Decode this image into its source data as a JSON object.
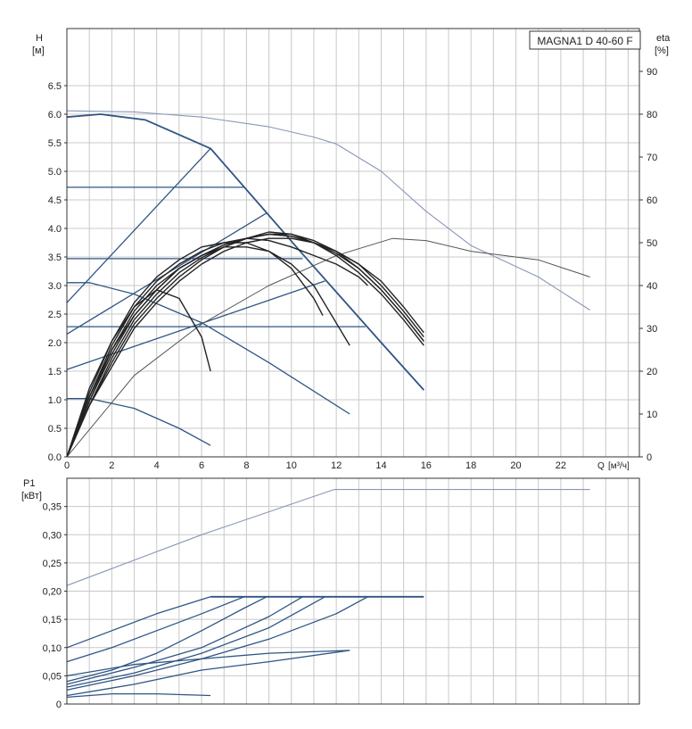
{
  "chart_data": [
    {
      "type": "line",
      "title": "MAGNA1 D 40-60 F",
      "ylabel": "H",
      "yunit": "[м]",
      "y2label": "eta",
      "y2unit": "[%]",
      "xlabel": "Q",
      "xunit": "[м³/ч]",
      "xlim": [
        0,
        25.5
      ],
      "ylim": [
        0,
        7.5
      ],
      "y2lim": [
        0,
        100
      ],
      "grid": true,
      "x_ticks": [
        "0",
        "2",
        "4",
        "6",
        "8",
        "10",
        "12",
        "14",
        "16",
        "18",
        "20",
        "22"
      ],
      "y_ticks": [
        "0.0",
        "0.5",
        "1.0",
        "1.5",
        "2.0",
        "2.5",
        "3.0",
        "3.5",
        "4.0",
        "4.5",
        "5.0",
        "5.5",
        "6.0",
        "6.5"
      ],
      "y2_ticks": [
        "0",
        "10",
        "20",
        "30",
        "40",
        "50",
        "60",
        "70",
        "80",
        "90"
      ],
      "series": [
        {
          "name": "max-curve-single",
          "axis": "H",
          "color": "#8a97b8",
          "width": 1.1,
          "x": [
            0,
            3,
            6,
            9,
            11,
            12,
            14,
            16,
            18,
            21,
            23.3
          ],
          "y": [
            6.06,
            6.04,
            5.95,
            5.78,
            5.6,
            5.48,
            5.0,
            4.3,
            3.7,
            3.15,
            2.57
          ]
        },
        {
          "name": "max-curve",
          "axis": "H",
          "color": "#2f5584",
          "width": 1.8,
          "x": [
            0,
            1.5,
            3.5,
            6.4,
            10.5,
            14,
            15.9
          ],
          "y": [
            5.95,
            6.0,
            5.9,
            5.4,
            3.55,
            2.0,
            1.17
          ]
        },
        {
          "name": "prop-pressure-1",
          "axis": "H",
          "color": "#2f5584",
          "width": 1.3,
          "x": [
            0,
            6.4
          ],
          "y": [
            2.7,
            5.4
          ]
        },
        {
          "name": "prop-pressure-2",
          "axis": "H",
          "color": "#2f5584",
          "width": 1.3,
          "x": [
            0,
            8.9
          ],
          "y": [
            2.15,
            4.27
          ]
        },
        {
          "name": "prop-pressure-3",
          "axis": "H",
          "color": "#2f5584",
          "width": 1.3,
          "x": [
            0,
            11.5
          ],
          "y": [
            1.53,
            3.08
          ]
        },
        {
          "name": "const-pressure-1",
          "axis": "H",
          "color": "#2f5584",
          "width": 1.3,
          "x": [
            0,
            7.9
          ],
          "y": [
            4.72,
            4.72
          ]
        },
        {
          "name": "const-pressure-2",
          "axis": "H",
          "color": "#2f5584",
          "width": 1.3,
          "x": [
            0,
            10.5
          ],
          "y": [
            3.47,
            3.47
          ]
        },
        {
          "name": "const-pressure-3",
          "axis": "H",
          "color": "#2f5584",
          "width": 1.3,
          "x": [
            0,
            13.3
          ],
          "y": [
            2.28,
            2.28
          ]
        },
        {
          "name": "speed-curve-3",
          "axis": "H",
          "color": "#2f5584",
          "width": 1.3,
          "x": [
            0,
            1,
            3,
            6,
            9,
            12.6
          ],
          "y": [
            3.05,
            3.05,
            2.85,
            2.35,
            1.65,
            0.75
          ]
        },
        {
          "name": "speed-curve-1",
          "axis": "H",
          "color": "#2f5584",
          "width": 1.3,
          "x": [
            0,
            1,
            3,
            5,
            6.4
          ],
          "y": [
            1.02,
            1.02,
            0.85,
            0.5,
            0.2
          ]
        },
        {
          "name": "eta-max",
          "axis": "eta",
          "color": "#555555",
          "width": 1.0,
          "x": [
            0,
            3,
            6,
            9,
            12,
            14.5,
            16,
            18,
            21,
            23.3
          ],
          "y": [
            0,
            19,
            31,
            40,
            47,
            51,
            50.5,
            48,
            46,
            42
          ]
        },
        {
          "name": "eta-1",
          "axis": "eta",
          "color": "#222222",
          "width": 1.4,
          "x": [
            0,
            1,
            2,
            3,
            4,
            5,
            6,
            6.4
          ],
          "y": [
            0,
            16,
            27,
            35,
            39,
            37,
            28,
            20
          ]
        },
        {
          "name": "eta-2",
          "axis": "eta",
          "color": "#222222",
          "width": 1.4,
          "x": [
            0,
            1,
            2,
            3,
            4,
            5,
            6,
            7,
            8,
            9,
            10,
            11,
            12.6
          ],
          "y": [
            0,
            14,
            25,
            33,
            39,
            44,
            47,
            49,
            49,
            48,
            45,
            40,
            26
          ]
        },
        {
          "name": "eta-3",
          "axis": "eta",
          "color": "#222222",
          "width": 1.4,
          "x": [
            0,
            1,
            2,
            3,
            4,
            5,
            6,
            7,
            8,
            9,
            10,
            11,
            11.4
          ],
          "y": [
            0,
            15,
            27,
            36,
            42,
            46,
            49,
            50,
            50,
            48,
            44,
            37,
            33
          ]
        },
        {
          "name": "eta-4",
          "axis": "eta",
          "color": "#222222",
          "width": 1.4,
          "x": [
            0,
            1,
            2,
            3,
            4,
            5,
            6,
            7,
            8,
            9,
            10,
            11,
            12,
            13,
            13.4
          ],
          "y": [
            0,
            14,
            26,
            35,
            41,
            45,
            48,
            50,
            51,
            50.5,
            49,
            47,
            45,
            42,
            40
          ]
        },
        {
          "name": "eta-5",
          "axis": "eta",
          "color": "#222222",
          "width": 1.4,
          "x": [
            0,
            1,
            2,
            3,
            4,
            5,
            6,
            7,
            8,
            9,
            10,
            11,
            12,
            13,
            14,
            15,
            15.9
          ],
          "y": [
            0,
            13,
            25,
            34,
            40,
            44,
            47,
            49.5,
            51,
            52,
            51.5,
            50,
            47,
            43,
            38,
            32,
            26
          ]
        },
        {
          "name": "eta-6",
          "axis": "eta",
          "color": "#222222",
          "width": 1.4,
          "x": [
            0,
            1,
            2,
            3,
            4,
            5,
            6,
            7,
            8,
            9,
            10,
            11,
            12,
            13,
            14,
            15,
            15.9
          ],
          "y": [
            0,
            12,
            23,
            32,
            38,
            43,
            46.5,
            49,
            51,
            52.5,
            52,
            50,
            47.5,
            44,
            39,
            33,
            27
          ]
        },
        {
          "name": "eta-7",
          "axis": "eta",
          "color": "#222222",
          "width": 1.4,
          "x": [
            0,
            1,
            2,
            3,
            4,
            5,
            6,
            7,
            8,
            9,
            10,
            11,
            12,
            13,
            14,
            15,
            15.9
          ],
          "y": [
            0,
            12,
            22,
            31,
            37,
            42,
            46,
            49,
            51,
            52,
            51.5,
            50,
            48,
            45,
            40,
            34,
            28
          ]
        },
        {
          "name": "eta-8",
          "axis": "eta",
          "color": "#222222",
          "width": 1.4,
          "x": [
            0,
            1,
            2,
            3,
            4,
            5,
            6,
            7,
            8,
            9,
            10,
            11,
            12,
            13,
            14,
            15,
            15.9
          ],
          "y": [
            0,
            12,
            21,
            30,
            36,
            41,
            45,
            48,
            50,
            51,
            51,
            50,
            48,
            45,
            41,
            35,
            29
          ]
        },
        {
          "name": "eta-9",
          "axis": "eta",
          "color": "#222222",
          "width": 1.4,
          "x": [
            0,
            1,
            2,
            3,
            4,
            5,
            6,
            7,
            8,
            9,
            10,
            11,
            12,
            13,
            14,
            15,
            15.9
          ],
          "y": [
            0,
            13,
            24,
            33,
            39,
            44,
            47,
            49.5,
            51,
            52,
            52,
            50.5,
            48,
            44,
            39,
            33,
            27
          ]
        }
      ]
    },
    {
      "type": "line",
      "ylabel": "P1",
      "yunit": "[кВт]",
      "xlim": [
        0,
        25.5
      ],
      "ylim": [
        0,
        0.4
      ],
      "grid": true,
      "y_ticks": [
        "0",
        "0,05",
        "0,10",
        "0,15",
        "0,20",
        "0,25",
        "0,30",
        "0,35"
      ],
      "series": [
        {
          "name": "power-single-max",
          "color": "#8a97b8",
          "width": 1.1,
          "x": [
            0,
            6,
            11.9,
            23.3
          ],
          "y": [
            0.21,
            0.3,
            0.38,
            0.38
          ]
        },
        {
          "name": "power-max-flat",
          "color": "#2f5584",
          "width": 1.8,
          "x": [
            6.4,
            15.9
          ],
          "y": [
            0.19,
            0.19
          ]
        },
        {
          "name": "power-a",
          "color": "#2f5584",
          "width": 1.3,
          "x": [
            0,
            2,
            4,
            6.4
          ],
          "y": [
            0.1,
            0.13,
            0.16,
            0.19
          ]
        },
        {
          "name": "power-b",
          "color": "#2f5584",
          "width": 1.3,
          "x": [
            0,
            2,
            4,
            6,
            7.9
          ],
          "y": [
            0.075,
            0.1,
            0.13,
            0.16,
            0.19
          ]
        },
        {
          "name": "power-c",
          "color": "#2f5584",
          "width": 1.3,
          "x": [
            0,
            2,
            4,
            6,
            7.9,
            8.9
          ],
          "y": [
            0.04,
            0.06,
            0.09,
            0.13,
            0.17,
            0.19
          ]
        },
        {
          "name": "power-d",
          "color": "#2f5584",
          "width": 1.3,
          "x": [
            0,
            3,
            6,
            9,
            10.5
          ],
          "y": [
            0.035,
            0.065,
            0.1,
            0.155,
            0.19
          ]
        },
        {
          "name": "power-e",
          "color": "#2f5584",
          "width": 1.3,
          "x": [
            0,
            3,
            6,
            9,
            11.5
          ],
          "y": [
            0.03,
            0.055,
            0.09,
            0.135,
            0.19
          ]
        },
        {
          "name": "power-f",
          "color": "#2f5584",
          "width": 1.3,
          "x": [
            0,
            3,
            6,
            9,
            12,
            13.4
          ],
          "y": [
            0.025,
            0.05,
            0.08,
            0.115,
            0.16,
            0.19
          ]
        },
        {
          "name": "power-g",
          "color": "#2f5584",
          "width": 1.3,
          "x": [
            0,
            3,
            6,
            9,
            12.6
          ],
          "y": [
            0.015,
            0.035,
            0.06,
            0.075,
            0.095
          ]
        },
        {
          "name": "power-h",
          "color": "#2f5584",
          "width": 1.3,
          "x": [
            0,
            3,
            6,
            9,
            12.6
          ],
          "y": [
            0.05,
            0.07,
            0.08,
            0.09,
            0.095
          ]
        },
        {
          "name": "power-i",
          "color": "#2f5584",
          "width": 1.3,
          "x": [
            0,
            2,
            4,
            6.4
          ],
          "y": [
            0.012,
            0.018,
            0.018,
            0.015
          ]
        }
      ]
    }
  ]
}
